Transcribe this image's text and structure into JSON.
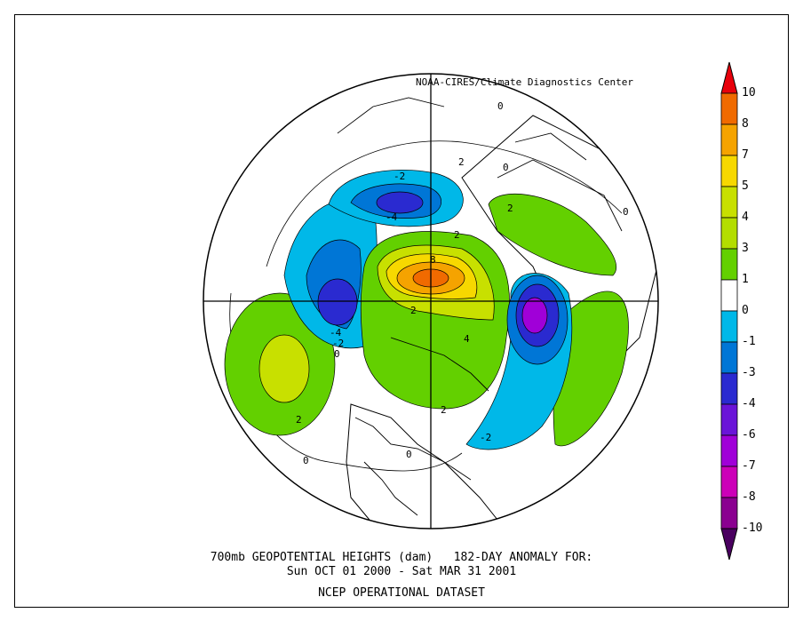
{
  "credit": "NOAA-CIRES/Climate Diagnostics Center",
  "title": {
    "line1": "700mb GEOPOTENTIAL HEIGHTS (dam)   182-DAY ANOMALY FOR:",
    "line2": "Sun OCT 01 2000 - Sat MAR 31 2001",
    "line3": "NCEP OPERATIONAL DATASET"
  },
  "colorbar": {
    "labels": [
      "10",
      "8",
      "7",
      "5",
      "4",
      "3",
      "1",
      "0",
      "-1",
      "-3",
      "-4",
      "-6",
      "-7",
      "-8",
      "-10"
    ],
    "colors": [
      "#e8000b",
      "#f06a00",
      "#f5a300",
      "#f7d800",
      "#c8e000",
      "#b3dd00",
      "#63d000",
      "#ffffff",
      "#00b8e8",
      "#0076d6",
      "#2a2ad0",
      "#6a14d8",
      "#a000d8",
      "#cc00b8",
      "#8a0090",
      "#4a0060"
    ]
  },
  "contour_labels": [
    "-2",
    "-4",
    "-4",
    "-2",
    "0",
    "2",
    "8",
    "2",
    "2",
    "4",
    "2",
    "-2",
    "2",
    "0",
    "0",
    "0",
    "0",
    "0",
    "2"
  ],
  "icons": {
    "map": "polar-stereographic-map"
  }
}
